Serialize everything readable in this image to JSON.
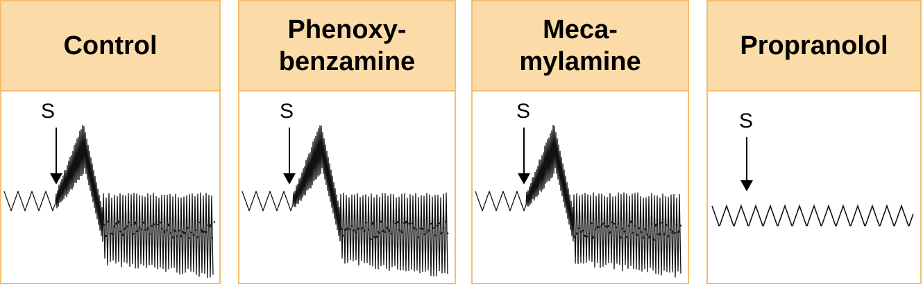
{
  "panels": [
    {
      "title": "Control",
      "stimulus_label": "S"
    },
    {
      "title": "Phenoxy-\nbenzamine",
      "stimulus_label": "S"
    },
    {
      "title": "Meca-\nmylamine",
      "stimulus_label": "S"
    },
    {
      "title": "Propranolol",
      "stimulus_label": "S"
    }
  ],
  "colors": {
    "header_fill": "#fbdca8",
    "border": "#f5bd6c",
    "trace": "#111111"
  }
}
